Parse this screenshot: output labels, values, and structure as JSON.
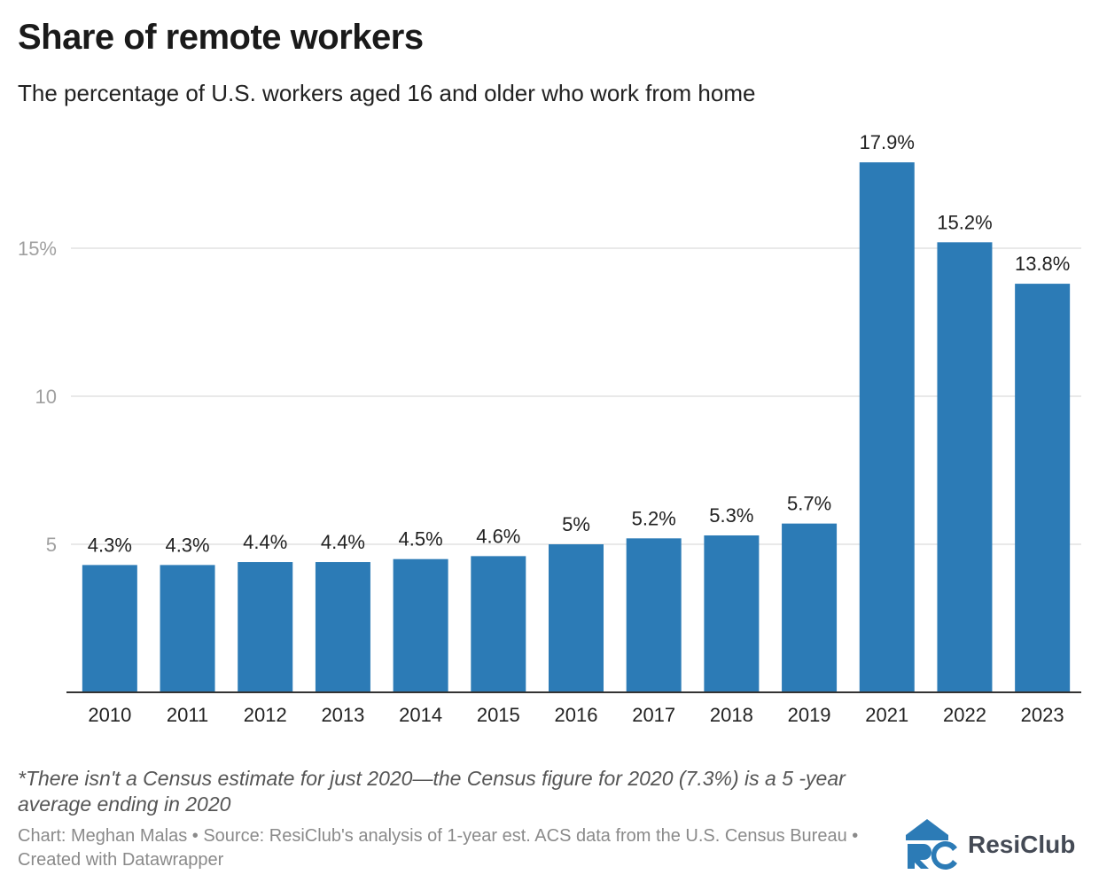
{
  "header": {
    "title": "Share of remote workers",
    "subtitle": "The percentage of U.S. workers aged 16 and older who work from home"
  },
  "footer": {
    "footnote": "*There isn't a Census estimate for just 2020—the Census figure for 2020 (7.3%) is a 5 -year average ending in 2020",
    "credits": "Chart: Meghan Malas • Source: ResiClub's analysis of 1-year est. ACS data from the U.S. Census Bureau • Created with Datawrapper",
    "logo_text": "ResiClub"
  },
  "colors": {
    "bar": "#2c7bb6",
    "grid": "#e2e2e2",
    "axis": "#333333",
    "tick_label": "#a0a0a0",
    "logo": "#2c7bb6"
  },
  "chart_data": {
    "type": "bar",
    "title": "Share of remote workers",
    "subtitle": "The percentage of U.S. workers aged 16 and older who work from home",
    "categories": [
      "2010",
      "2011",
      "2012",
      "2013",
      "2014",
      "2015",
      "2016",
      "2017",
      "2018",
      "2019",
      "2021",
      "2022",
      "2023"
    ],
    "values": [
      4.3,
      4.3,
      4.4,
      4.4,
      4.5,
      4.6,
      5,
      5.2,
      5.3,
      5.7,
      17.9,
      15.2,
      13.8
    ],
    "value_labels": [
      "4.3%",
      "4.3%",
      "4.4%",
      "4.4%",
      "4.5%",
      "4.6%",
      "5%",
      "5.2%",
      "5.3%",
      "5.7%",
      "17.9%",
      "15.2%",
      "13.8%"
    ],
    "yticks": [
      5,
      10,
      15
    ],
    "ytick_labels": [
      "5",
      "10",
      "15%"
    ],
    "ylim": [
      0,
      18
    ],
    "xlabel": "",
    "ylabel": "",
    "grid": true
  }
}
